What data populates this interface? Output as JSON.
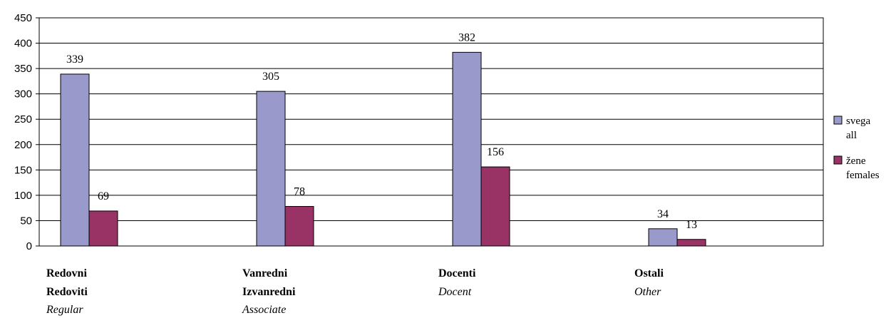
{
  "chart_data": {
    "type": "bar",
    "categories": [
      "Redovni",
      "Vanredni",
      "Docenti",
      "Ostali"
    ],
    "category_labels": [
      {
        "line1": "Redovni",
        "line2": "Redoviti",
        "line3": "Regular"
      },
      {
        "line1": "Vanredni",
        "line2": "Izvanredni",
        "line3": "Associate"
      },
      {
        "line1": "Docenti",
        "line2": "Docent",
        "line3": ""
      },
      {
        "line1": "Ostali",
        "line2": "Other",
        "line3": ""
      }
    ],
    "series": [
      {
        "name": "svega all",
        "name_line1": "svega",
        "name_line2": "all",
        "values": [
          339,
          305,
          382,
          34
        ],
        "color": "#9999cc"
      },
      {
        "name": "žene females",
        "name_line1": "žene",
        "name_line2": "females",
        "values": [
          69,
          78,
          156,
          13
        ],
        "color": "#993366"
      }
    ],
    "ylim": [
      0,
      450
    ],
    "yticks": [
      0,
      50,
      100,
      150,
      200,
      250,
      300,
      350,
      400,
      450
    ],
    "grid": true,
    "legend": "right",
    "title": "",
    "xlabel": "",
    "ylabel": ""
  }
}
